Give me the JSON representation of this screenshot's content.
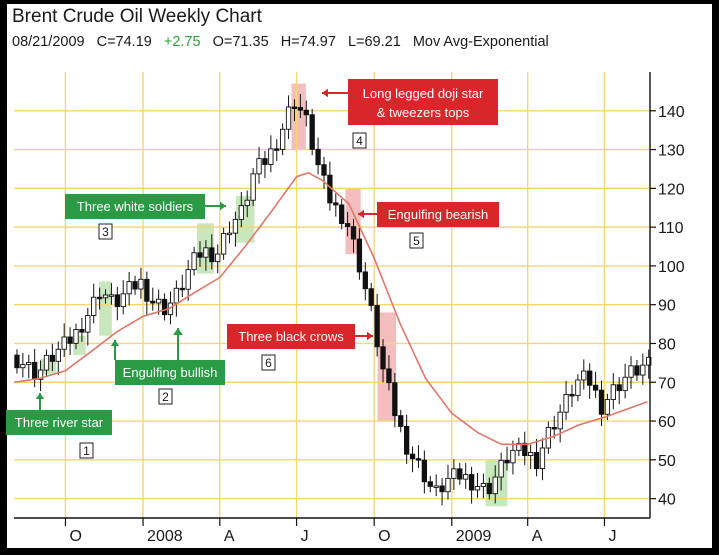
{
  "header": {
    "title": "Brent Crude Oil Weekly Chart",
    "date": "08/21/2009",
    "close": "C=74.19",
    "change": "+2.75",
    "open": "O=71.35",
    "high": "H=74.97",
    "low": "L=69.21",
    "indicator": "Mov Avg-Exponential"
  },
  "colors": {
    "grid": "#f4d774",
    "up_candle": "#ffffff",
    "down_candle": "#111111",
    "moving_average": "#e0786a",
    "bullish_annotation": "#2a9a45",
    "bearish_annotation": "#d9262b",
    "bullish_highlight": "#bfe3b0",
    "bearish_highlight": "#f2b3b3",
    "positive_change": "#2e9e3e"
  },
  "chart_data": {
    "type": "candlestick",
    "y_axis": {
      "side": "right",
      "ylim": [
        35,
        150
      ],
      "ticks": [
        40,
        50,
        60,
        70,
        80,
        90,
        100,
        110,
        120,
        130,
        140
      ]
    },
    "x_axis": {
      "start": "2007-08-01",
      "end": "2009-08-24",
      "labels": [
        {
          "label": "O",
          "date": "2007-10-01"
        },
        {
          "label": "2008",
          "date": "2008-01-01"
        },
        {
          "label": "A",
          "date": "2008-04-01"
        },
        {
          "label": "J",
          "date": "2008-07-01"
        },
        {
          "label": "O",
          "date": "2008-10-01"
        },
        {
          "label": "2009",
          "date": "2009-01-01"
        },
        {
          "label": "A",
          "date": "2009-04-01"
        },
        {
          "label": "J",
          "date": "2009-07-01"
        }
      ]
    },
    "grid": true,
    "series": [
      {
        "kind": "close",
        "points": [
          [
            "2007-08-01",
            77
          ],
          [
            "2007-08-15",
            75
          ],
          [
            "2007-09-01",
            72
          ],
          [
            "2007-09-15",
            76
          ],
          [
            "2007-10-01",
            79
          ],
          [
            "2007-10-15",
            82
          ],
          [
            "2007-11-01",
            88
          ],
          [
            "2007-11-15",
            94
          ],
          [
            "2007-12-01",
            90
          ],
          [
            "2007-12-15",
            93
          ],
          [
            "2008-01-01",
            96
          ],
          [
            "2008-01-15",
            91
          ],
          [
            "2008-02-01",
            89
          ],
          [
            "2008-02-15",
            93
          ],
          [
            "2008-03-01",
            100
          ],
          [
            "2008-03-15",
            104
          ],
          [
            "2008-04-01",
            103
          ],
          [
            "2008-04-15",
            110
          ],
          [
            "2008-05-01",
            114
          ],
          [
            "2008-05-15",
            124
          ],
          [
            "2008-06-01",
            128
          ],
          [
            "2008-06-15",
            134
          ],
          [
            "2008-07-01",
            143
          ],
          [
            "2008-07-15",
            138
          ],
          [
            "2008-08-01",
            124
          ],
          [
            "2008-08-15",
            116
          ],
          [
            "2008-09-01",
            112
          ],
          [
            "2008-09-15",
            102
          ],
          [
            "2008-10-01",
            88
          ],
          [
            "2008-10-15",
            73
          ],
          [
            "2008-11-01",
            60
          ],
          [
            "2008-11-15",
            52
          ],
          [
            "2008-12-01",
            47
          ],
          [
            "2008-12-15",
            41
          ],
          [
            "2009-01-01",
            45
          ],
          [
            "2009-01-15",
            46
          ],
          [
            "2009-02-01",
            44
          ],
          [
            "2009-02-15",
            42
          ],
          [
            "2009-03-01",
            47
          ],
          [
            "2009-03-15",
            52
          ],
          [
            "2009-04-01",
            52
          ],
          [
            "2009-04-15",
            50
          ],
          [
            "2009-05-01",
            58
          ],
          [
            "2009-05-15",
            63
          ],
          [
            "2009-06-01",
            70
          ],
          [
            "2009-06-15",
            71
          ],
          [
            "2009-07-01",
            64
          ],
          [
            "2009-07-15",
            68
          ],
          [
            "2009-08-01",
            72
          ],
          [
            "2009-08-21",
            74.19
          ]
        ]
      },
      {
        "kind": "moving_average",
        "points": [
          [
            "2007-08-01",
            70
          ],
          [
            "2007-09-01",
            71
          ],
          [
            "2007-10-01",
            73
          ],
          [
            "2007-11-01",
            78
          ],
          [
            "2007-12-01",
            83
          ],
          [
            "2008-01-01",
            87
          ],
          [
            "2008-02-01",
            89
          ],
          [
            "2008-03-01",
            93
          ],
          [
            "2008-04-01",
            97
          ],
          [
            "2008-05-01",
            105
          ],
          [
            "2008-06-01",
            114
          ],
          [
            "2008-07-01",
            123
          ],
          [
            "2008-07-15",
            124
          ],
          [
            "2008-08-01",
            122
          ],
          [
            "2008-09-01",
            116
          ],
          [
            "2008-10-01",
            102
          ],
          [
            "2008-11-01",
            85
          ],
          [
            "2008-12-01",
            71
          ],
          [
            "2009-01-01",
            62
          ],
          [
            "2009-02-01",
            57
          ],
          [
            "2009-03-01",
            54
          ],
          [
            "2009-04-01",
            54
          ],
          [
            "2009-05-01",
            56
          ],
          [
            "2009-06-01",
            59
          ],
          [
            "2009-07-01",
            61
          ],
          [
            "2009-08-21",
            65
          ]
        ]
      }
    ],
    "highlights": [
      {
        "kind": "bullish",
        "start": "2007-09-01",
        "end": "2007-09-20",
        "low": 72,
        "high": 76
      },
      {
        "kind": "bullish",
        "start": "2007-10-10",
        "end": "2007-10-25",
        "low": 77,
        "high": 82
      },
      {
        "kind": "bullish",
        "start": "2007-11-10",
        "end": "2007-11-25",
        "low": 82,
        "high": 96
      },
      {
        "kind": "bullish",
        "start": "2008-03-05",
        "end": "2008-03-25",
        "low": 98,
        "high": 111
      },
      {
        "kind": "bullish",
        "start": "2008-04-20",
        "end": "2008-05-12",
        "low": 106,
        "high": 118
      },
      {
        "kind": "bearish",
        "start": "2008-06-25",
        "end": "2008-07-12",
        "low": 130,
        "high": 147
      },
      {
        "kind": "bearish",
        "start": "2008-08-28",
        "end": "2008-09-15",
        "low": 103,
        "high": 120
      },
      {
        "kind": "bearish",
        "start": "2008-10-05",
        "end": "2008-10-27",
        "low": 60,
        "high": 88
      },
      {
        "kind": "bullish",
        "start": "2009-02-10",
        "end": "2009-03-08",
        "low": 38,
        "high": 50
      }
    ],
    "annotations": [
      {
        "text": "Three river star",
        "kind": "bullish",
        "number": "1"
      },
      {
        "text": "Engulfing bullish",
        "kind": "bullish",
        "number": "2"
      },
      {
        "text": "Three white soldiers",
        "kind": "bullish",
        "number": "3"
      },
      {
        "text": "Long legged doji star",
        "text2": "& tweezers tops",
        "kind": "bearish",
        "number": "4"
      },
      {
        "text": "Engulfing bearish",
        "kind": "bearish",
        "number": "5"
      },
      {
        "text": "Three black crows",
        "kind": "bearish",
        "number": "6"
      }
    ]
  }
}
